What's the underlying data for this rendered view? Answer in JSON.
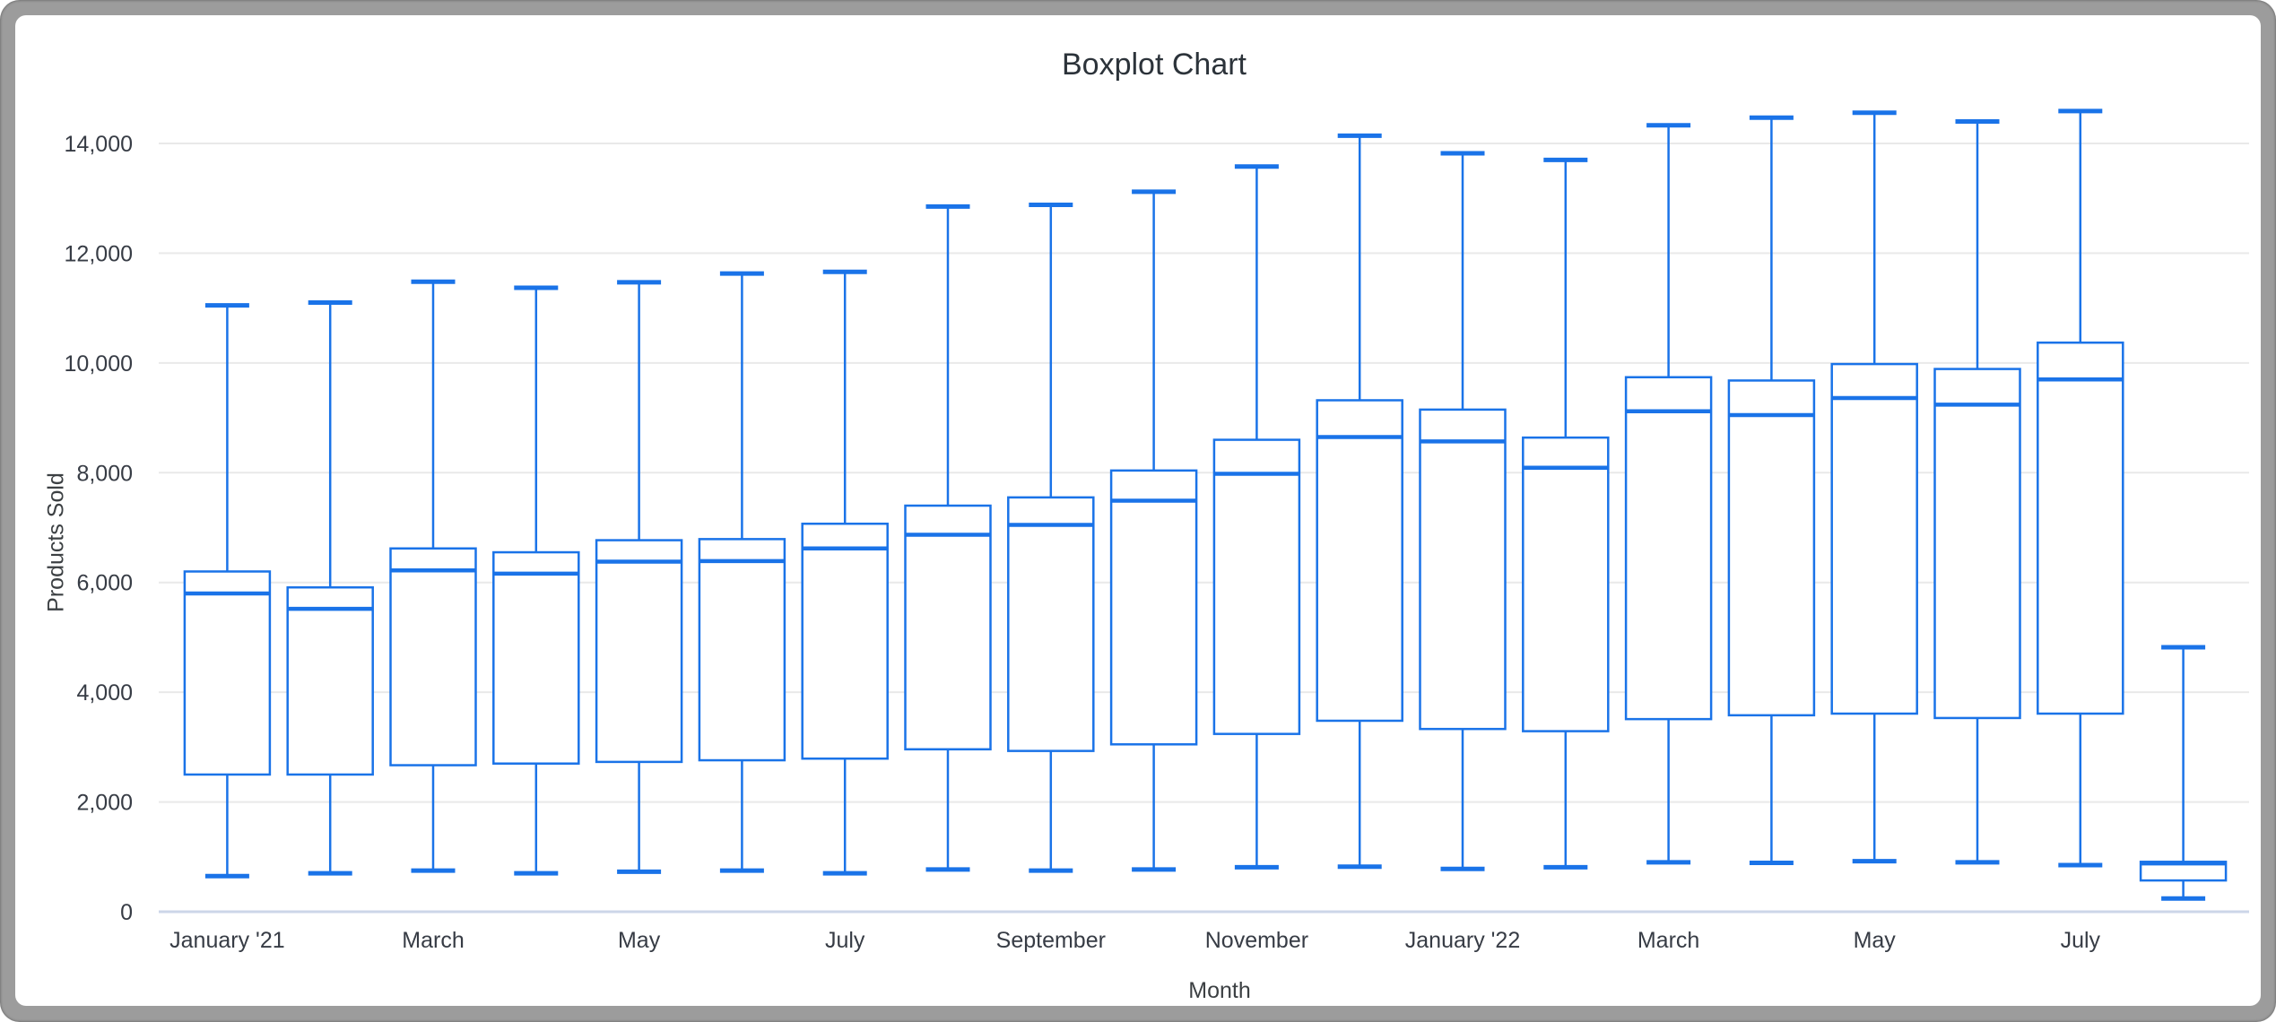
{
  "window": {
    "frame_color": "#9c9c9c",
    "panel_color": "#ffffff"
  },
  "colors": {
    "box_stroke": "#1a73e8",
    "gridline": "#e9e9e9",
    "baseline": "#ccd6e8",
    "tick_text": "#373c45",
    "axis_title_text": "#3c4043",
    "title_text": "#2c333a"
  },
  "chart_data": {
    "type": "boxplot",
    "title": "Boxplot Chart",
    "xlabel": "Month",
    "ylabel": "Products Sold",
    "ylim": [
      0,
      14000
    ],
    "grid": true,
    "legend_position": "none",
    "y_ticks": [
      0,
      2000,
      4000,
      6000,
      8000,
      10000,
      12000,
      14000
    ],
    "y_tick_labels": [
      "0",
      "2,000",
      "4,000",
      "6,000",
      "8,000",
      "10,000",
      "12,000",
      "14,000"
    ],
    "x_tick_labels": [
      "January '21",
      "March",
      "May",
      "July",
      "September",
      "November",
      "January '22",
      "March",
      "May",
      "July"
    ],
    "boxes": [
      {
        "tick_label": "January '21",
        "min": 650,
        "q1": 2500,
        "median": 5800,
        "q3": 6200,
        "max": 11050
      },
      {
        "tick_label": "",
        "min": 700,
        "q1": 2500,
        "median": 5520,
        "q3": 5910,
        "max": 11100
      },
      {
        "tick_label": "March",
        "min": 750,
        "q1": 2670,
        "median": 6220,
        "q3": 6620,
        "max": 11480
      },
      {
        "tick_label": "",
        "min": 700,
        "q1": 2700,
        "median": 6160,
        "q3": 6550,
        "max": 11370
      },
      {
        "tick_label": "May",
        "min": 730,
        "q1": 2730,
        "median": 6380,
        "q3": 6770,
        "max": 11470
      },
      {
        "tick_label": "",
        "min": 750,
        "q1": 2760,
        "median": 6390,
        "q3": 6790,
        "max": 11630
      },
      {
        "tick_label": "July",
        "min": 700,
        "q1": 2790,
        "median": 6620,
        "q3": 7070,
        "max": 11660
      },
      {
        "tick_label": "",
        "min": 770,
        "q1": 2960,
        "median": 6870,
        "q3": 7400,
        "max": 12850
      },
      {
        "tick_label": "September",
        "min": 750,
        "q1": 2930,
        "median": 7050,
        "q3": 7550,
        "max": 12880
      },
      {
        "tick_label": "",
        "min": 770,
        "q1": 3050,
        "median": 7490,
        "q3": 8040,
        "max": 13120
      },
      {
        "tick_label": "November",
        "min": 810,
        "q1": 3240,
        "median": 7980,
        "q3": 8600,
        "max": 13580
      },
      {
        "tick_label": "",
        "min": 820,
        "q1": 3480,
        "median": 8650,
        "q3": 9320,
        "max": 14140
      },
      {
        "tick_label": "January '22",
        "min": 780,
        "q1": 3330,
        "median": 8570,
        "q3": 9150,
        "max": 13820
      },
      {
        "tick_label": "",
        "min": 810,
        "q1": 3290,
        "median": 8090,
        "q3": 8640,
        "max": 13700
      },
      {
        "tick_label": "March",
        "min": 900,
        "q1": 3510,
        "median": 9120,
        "q3": 9740,
        "max": 14330
      },
      {
        "tick_label": "",
        "min": 890,
        "q1": 3580,
        "median": 9050,
        "q3": 9680,
        "max": 14470
      },
      {
        "tick_label": "May",
        "min": 920,
        "q1": 3610,
        "median": 9360,
        "q3": 9980,
        "max": 14560
      },
      {
        "tick_label": "",
        "min": 900,
        "q1": 3530,
        "median": 9240,
        "q3": 9890,
        "max": 14400
      },
      {
        "tick_label": "July",
        "min": 850,
        "q1": 3610,
        "median": 9700,
        "q3": 10370,
        "max": 14590
      },
      {
        "tick_label": "",
        "min": 240,
        "q1": 570,
        "median": 880,
        "q3": 910,
        "max": 4820
      }
    ]
  }
}
